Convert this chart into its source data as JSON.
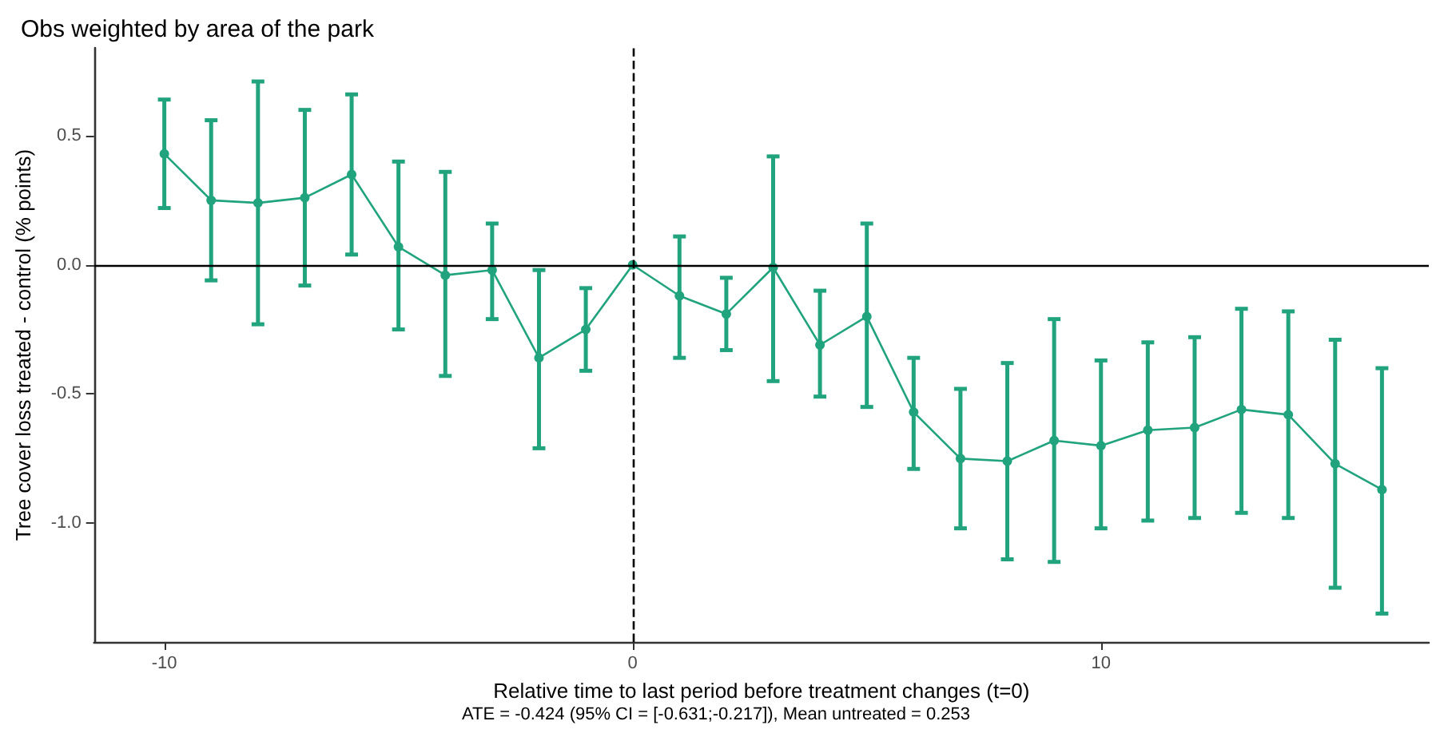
{
  "chart_data": {
    "type": "line",
    "title": "Obs weighted by area of the park",
    "xlabel": "Relative time to last period before treatment changes (t=0)",
    "ylabel": "Tree cover loss treated - control (% points)",
    "annotations": [
      "ATE = -0.424 (95% CI = [-0.631;-0.217]), Mean untreated = 0.253"
    ],
    "x": [
      -10,
      -9,
      -8,
      -7,
      -6,
      -5,
      -4,
      -3,
      -2,
      -1,
      0,
      1,
      2,
      3,
      4,
      5,
      6,
      7,
      8,
      9,
      10,
      11,
      12,
      13,
      14,
      15,
      16
    ],
    "series": [
      {
        "color": "#21a47e",
        "values": [
          0.43,
          0.25,
          0.24,
          0.26,
          0.35,
          0.07,
          -0.04,
          -0.02,
          -0.36,
          -0.25,
          0,
          -0.12,
          -0.19,
          -0.01,
          -0.31,
          -0.2,
          -0.57,
          -0.75,
          -0.76,
          -0.68,
          -0.7,
          -0.64,
          -0.63,
          -0.56,
          -0.58,
          -0.77,
          -0.87
        ],
        "errors": [
          [
            0.22,
            0.64
          ],
          [
            -0.06,
            0.56
          ],
          [
            -0.23,
            0.71
          ],
          [
            -0.08,
            0.6
          ],
          [
            0.04,
            0.66
          ],
          [
            -0.25,
            0.4
          ],
          [
            -0.43,
            0.36
          ],
          [
            -0.21,
            0.16
          ],
          [
            -0.71,
            -0.02
          ],
          [
            -0.41,
            -0.09
          ],
          null,
          [
            -0.36,
            0.11
          ],
          [
            -0.33,
            -0.05
          ],
          [
            -0.45,
            0.42
          ],
          [
            -0.51,
            -0.1
          ],
          [
            -0.55,
            0.16
          ],
          [
            -0.79,
            -0.36
          ],
          [
            -1.02,
            -0.48
          ],
          [
            -1.14,
            -0.38
          ],
          [
            -1.15,
            -0.21
          ],
          [
            -1.02,
            -0.37
          ],
          [
            -0.99,
            -0.3
          ],
          [
            -0.98,
            -0.28
          ],
          [
            -0.96,
            -0.17
          ],
          [
            -0.98,
            -0.18
          ],
          [
            -1.25,
            -0.29
          ],
          [
            -1.35,
            -0.4
          ]
        ]
      }
    ],
    "xlim": [
      -11.5,
      17
    ],
    "xticks": [
      -10,
      0,
      10
    ],
    "ylim": [
      -1.46,
      0.84
    ],
    "yticks": [
      {
        "value": -1,
        "label": "-1.0"
      },
      {
        "value": -0.5,
        "label": "-0.5"
      },
      {
        "value": 0,
        "label": "0.0"
      },
      {
        "value": 0.5,
        "label": "0.5"
      }
    ],
    "ref_lines": [
      {
        "axis": "y",
        "value": 0,
        "color": "#000000",
        "line_style": "solid"
      },
      {
        "axis": "x",
        "value": 0,
        "color": "#000000",
        "line_style": "dashed"
      }
    ],
    "grid": false,
    "marker": "circle",
    "line_style": "solid"
  }
}
